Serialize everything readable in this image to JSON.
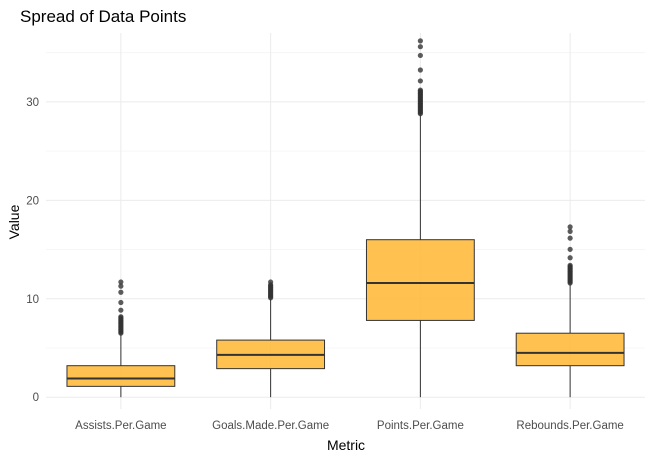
{
  "chart_data": {
    "type": "box",
    "title": "Spread of Data Points",
    "xlabel": "Metric",
    "ylabel": "Value",
    "ylim": [
      -1.2,
      37
    ],
    "y_ticks": [
      0,
      10,
      20,
      30
    ],
    "box_color": "#FFB732",
    "line_color": "#333333",
    "grid": true,
    "categories": [
      "Assists.Per.Game",
      "Goals.Made.Per.Game",
      "Points.Per.Game",
      "Rebounds.Per.Game"
    ],
    "boxes": [
      {
        "name": "Assists.Per.Game",
        "whisker_low": 0.0,
        "q1": 1.1,
        "median": 1.9,
        "q3": 3.2,
        "whisker_high": 6.4,
        "outlier_min": 6.5,
        "outlier_max": 11.7
      },
      {
        "name": "Goals.Made.Per.Game",
        "whisker_low": 0.0,
        "q1": 2.9,
        "median": 4.3,
        "q3": 5.8,
        "whisker_high": 10.0,
        "outlier_min": 10.1,
        "outlier_max": 11.7
      },
      {
        "name": "Points.Per.Game",
        "whisker_low": 0.0,
        "q1": 7.8,
        "median": 11.6,
        "q3": 16.0,
        "whisker_high": 28.7,
        "outlier_min": 28.8,
        "outlier_max": 36.2
      },
      {
        "name": "Rebounds.Per.Game",
        "whisker_low": 0.0,
        "q1": 3.2,
        "median": 4.5,
        "q3": 6.5,
        "whisker_high": 11.5,
        "outlier_min": 11.6,
        "outlier_max": 17.3
      }
    ]
  }
}
